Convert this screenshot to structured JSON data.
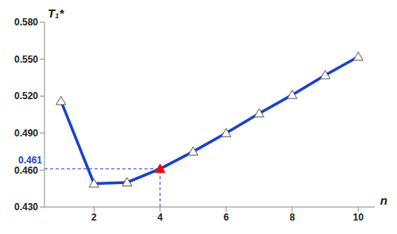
{
  "chart_data": {
    "type": "line",
    "x_label": "n",
    "y_label": "T₁*",
    "x": [
      1,
      2,
      3,
      4,
      5,
      6,
      7,
      8,
      9,
      10
    ],
    "values": [
      0.516,
      0.449,
      0.45,
      0.461,
      0.475,
      0.49,
      0.506,
      0.521,
      0.537,
      0.552
    ],
    "color": "#1a3fd1",
    "marker": "triangle",
    "line_style": "solid",
    "grid": false,
    "xlim": [
      0.5,
      10.5
    ],
    "xticks": [
      2,
      4,
      6,
      8,
      10
    ],
    "ylim": [
      0.43,
      0.58
    ],
    "yticks": [
      {
        "value": 0.43,
        "label": "0.430"
      },
      {
        "value": 0.46,
        "label": "0.460"
      },
      {
        "value": 0.49,
        "label": "0.490"
      },
      {
        "value": 0.52,
        "label": "0.520"
      },
      {
        "value": 0.55,
        "label": "0.550"
      },
      {
        "value": 0.58,
        "label": "0.580"
      }
    ],
    "highlight": {
      "x": 4,
      "y": 0.461,
      "label": "0.461",
      "color": "#ff0000",
      "label_color": "#1a3fd1"
    }
  }
}
